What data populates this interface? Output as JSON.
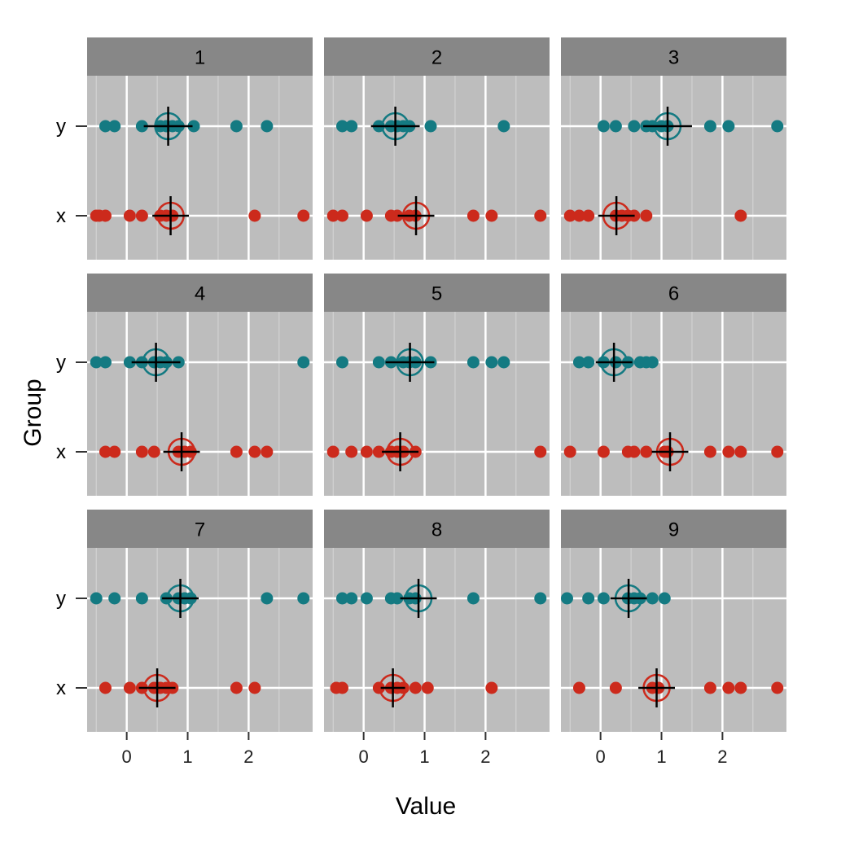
{
  "chart_data": {
    "type": "scatter",
    "title": "",
    "xlabel": "Value",
    "ylabel": "Group",
    "xlim": [
      -0.65,
      3.05
    ],
    "x_ticks": [
      0,
      1,
      2
    ],
    "categories": [
      "x",
      "y"
    ],
    "grid": true,
    "legend": "none",
    "colors": {
      "x": "#cc2a1c",
      "y": "#147a82",
      "panel_bg": "#bdbdbd",
      "strip_bg": "#878787",
      "grid": "#ffffff",
      "summary": "#000000"
    },
    "panels": [
      {
        "label": "1",
        "y": {
          "points": [
            -0.35,
            -0.2,
            0.25,
            0.55,
            0.65,
            0.75,
            0.85,
            1.1,
            1.8,
            2.3
          ],
          "mean": 0.68,
          "spread": 0.4
        },
        "x": {
          "points": [
            -0.5,
            -0.45,
            -0.35,
            0.05,
            0.25,
            0.55,
            0.65,
            0.75,
            2.1,
            2.9
          ],
          "mean": 0.72,
          "spread": 0.3
        }
      },
      {
        "label": "2",
        "y": {
          "points": [
            -0.35,
            -0.2,
            0.25,
            0.45,
            0.55,
            0.65,
            0.75,
            1.1,
            2.3
          ],
          "mean": 0.52,
          "spread": 0.4
        },
        "x": {
          "points": [
            -0.5,
            -0.35,
            0.05,
            0.45,
            0.55,
            0.75,
            0.85,
            1.8,
            2.1,
            2.9
          ],
          "mean": 0.86,
          "spread": 0.3
        }
      },
      {
        "label": "3",
        "y": {
          "points": [
            0.05,
            0.25,
            0.55,
            0.75,
            0.85,
            1.0,
            1.1,
            1.8,
            2.1,
            2.9
          ],
          "mean": 1.1,
          "spread": 0.4
        },
        "x": {
          "points": [
            -0.5,
            -0.35,
            -0.2,
            0.25,
            0.35,
            0.45,
            0.55,
            0.75,
            2.3
          ],
          "mean": 0.26,
          "spread": 0.3
        }
      },
      {
        "label": "4",
        "y": {
          "points": [
            -0.5,
            -0.35,
            0.05,
            0.25,
            0.45,
            0.55,
            0.65,
            0.85,
            2.9
          ],
          "mean": 0.48,
          "spread": 0.4
        },
        "x": {
          "points": [
            -0.35,
            -0.2,
            0.25,
            0.45,
            0.85,
            0.95,
            1.05,
            1.8,
            2.1,
            2.3
          ],
          "mean": 0.9,
          "spread": 0.3
        }
      },
      {
        "label": "5",
        "y": {
          "points": [
            -0.35,
            0.25,
            0.45,
            0.65,
            0.75,
            0.85,
            1.1,
            1.8,
            2.1,
            2.3
          ],
          "mean": 0.76,
          "spread": 0.4
        },
        "x": {
          "points": [
            -0.5,
            -0.2,
            0.05,
            0.25,
            0.45,
            0.55,
            0.65,
            0.85,
            2.9
          ],
          "mean": 0.6,
          "spread": 0.3
        }
      },
      {
        "label": "6",
        "y": {
          "points": [
            -0.35,
            -0.2,
            0.05,
            0.25,
            0.45,
            0.65,
            0.75,
            0.85
          ],
          "mean": 0.22,
          "spread": 0.3
        },
        "x": {
          "points": [
            -0.5,
            0.05,
            0.45,
            0.55,
            0.75,
            1.05,
            1.1,
            1.8,
            2.1,
            2.3,
            2.9
          ],
          "mean": 1.14,
          "spread": 0.3
        }
      },
      {
        "label": "7",
        "y": {
          "points": [
            -0.5,
            -0.2,
            0.25,
            0.65,
            0.85,
            0.95,
            1.05,
            2.3,
            2.9
          ],
          "mean": 0.88,
          "spread": 0.3
        },
        "x": {
          "points": [
            -0.35,
            0.05,
            0.25,
            0.45,
            0.55,
            0.65,
            0.75,
            1.8,
            2.1
          ],
          "mean": 0.5,
          "spread": 0.3
        }
      },
      {
        "label": "8",
        "y": {
          "points": [
            -0.35,
            -0.2,
            0.05,
            0.45,
            0.55,
            0.75,
            0.85,
            1.8,
            2.9
          ],
          "mean": 0.9,
          "spread": 0.3
        },
        "x": {
          "points": [
            -0.45,
            -0.35,
            0.25,
            0.45,
            0.55,
            0.65,
            0.85,
            1.05,
            2.1
          ],
          "mean": 0.48,
          "spread": 0.2
        }
      },
      {
        "label": "9",
        "y": {
          "points": [
            -0.55,
            -0.2,
            0.05,
            0.45,
            0.55,
            0.65,
            0.85,
            1.05
          ],
          "mean": 0.46,
          "spread": 0.3
        },
        "x": {
          "points": [
            -0.35,
            0.25,
            0.85,
            0.95,
            1.8,
            2.1,
            2.3,
            2.9
          ],
          "mean": 0.92,
          "spread": 0.3
        }
      }
    ]
  }
}
